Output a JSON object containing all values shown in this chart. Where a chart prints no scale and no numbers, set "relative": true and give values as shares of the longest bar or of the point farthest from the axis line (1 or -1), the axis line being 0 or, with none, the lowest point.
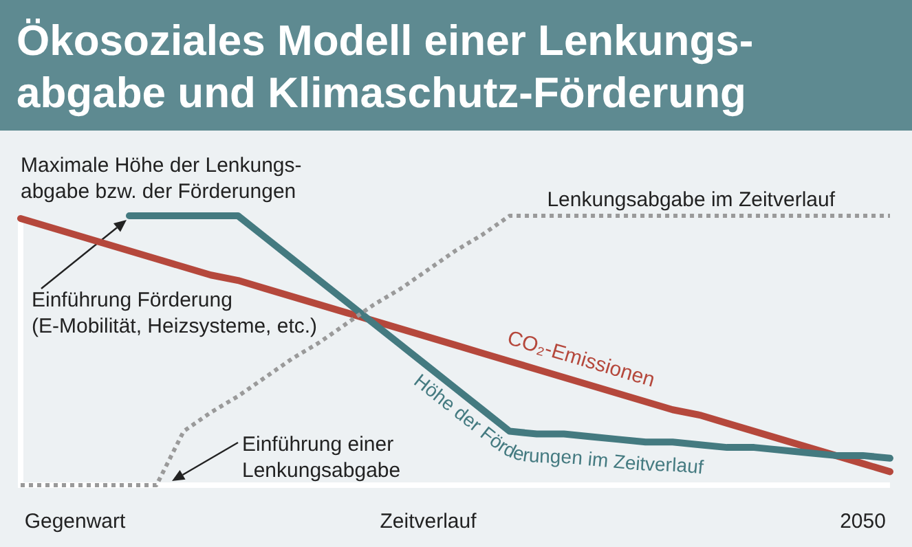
{
  "chart_data": {
    "type": "line",
    "relative": true,
    "title": "Ökosoziales Modell einer Lenkungs-\nabgabe und Klimaschutz-Förderung",
    "categories": [
      null,
      null,
      "Gegenwart",
      null,
      null,
      null,
      null,
      null,
      null,
      null,
      null,
      null,
      null,
      null,
      null,
      "Zeitverlauf",
      null,
      null,
      null,
      null,
      null,
      null,
      null,
      null,
      null,
      null,
      null,
      null,
      null,
      null,
      null,
      "2050",
      null
    ],
    "series": [
      {
        "name": "CO₂-Emissionen",
        "color": "#b5483c",
        "values": [
          0.99,
          0.96,
          0.93,
          0.9,
          0.87,
          0.84,
          0.81,
          0.78,
          0.76,
          0.73,
          0.7,
          0.67,
          0.64,
          0.61,
          0.58,
          0.55,
          0.52,
          0.49,
          0.46,
          0.43,
          0.4,
          0.37,
          0.34,
          0.31,
          0.28,
          0.26,
          0.23,
          0.2,
          0.17,
          0.14,
          0.11,
          0.08,
          0.05
        ]
      },
      {
        "name": "Höhe der Förderungen im Zeitverlauf",
        "color": "#447a80",
        "values": [
          null,
          null,
          null,
          null,
          1,
          1,
          1,
          1,
          1,
          0.92,
          0.84,
          0.76,
          0.68,
          0.6,
          0.52,
          0.44,
          0.36,
          0.28,
          0.2,
          0.19,
          0.19,
          0.18,
          0.17,
          0.16,
          0.16,
          0.15,
          0.14,
          0.14,
          0.13,
          0.12,
          0.11,
          0.11,
          0.1
        ]
      },
      {
        "name": "Lenkungsabgabe im Zeitverlauf",
        "color": "#9a9a9a",
        "line_style": "dotted",
        "values": [
          0,
          0,
          0,
          0,
          0,
          0,
          0.2,
          0.27,
          0.33,
          0.4,
          0.47,
          0.53,
          0.6,
          0.67,
          0.73,
          0.8,
          0.87,
          0.93,
          1,
          1,
          1,
          1,
          1,
          1,
          1,
          1,
          1,
          1,
          1,
          1,
          1,
          1,
          1
        ]
      }
    ],
    "annotations": [
      "Maximale Höhe der Lenkungs-\nabgabe bzw. der Förderungen",
      "Einführung Förderung\n(E-Mobilität, Heizsysteme, etc.)",
      "Einführung einer\nLenkungsabgabe"
    ]
  }
}
